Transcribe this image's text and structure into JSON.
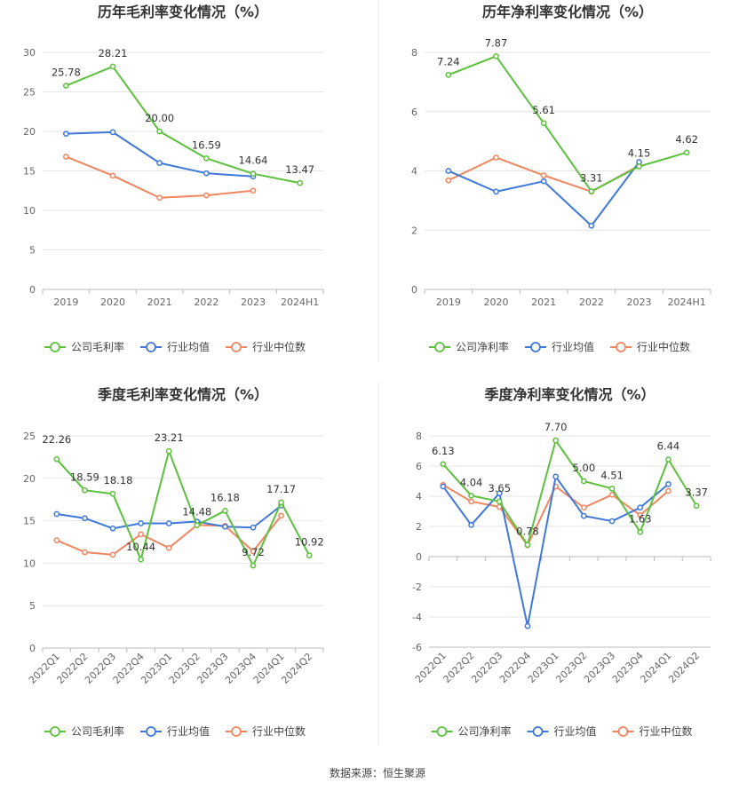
{
  "source_note": "数据来源：恒生聚源",
  "colors": {
    "company": "#5cc13d",
    "industry_avg": "#3f78d8",
    "industry_median": "#f0865f"
  },
  "chart_data": [
    {
      "type": "line",
      "title": "历年毛利率变化情况（%）",
      "categories": [
        "2019",
        "2020",
        "2021",
        "2022",
        "2023",
        "2024H1"
      ],
      "ylim": [
        0,
        30
      ],
      "yticks": [
        0,
        5,
        10,
        15,
        20,
        25,
        30
      ],
      "grid": true,
      "legend_position": "bottom",
      "label_series": 0,
      "series": [
        {
          "name": "公司毛利率",
          "color": "#5cc13d",
          "values": [
            25.78,
            28.21,
            20.0,
            16.59,
            14.64,
            13.47
          ]
        },
        {
          "name": "行业均值",
          "color": "#3f78d8",
          "values": [
            19.7,
            19.9,
            16.0,
            14.7,
            14.3,
            null
          ]
        },
        {
          "name": "行业中位数",
          "color": "#f0865f",
          "values": [
            16.8,
            14.4,
            11.6,
            11.9,
            12.5,
            null
          ]
        }
      ],
      "labels": [
        "25.78",
        "28.21",
        "20.00",
        "16.59",
        "14.64",
        "13.47"
      ]
    },
    {
      "type": "line",
      "title": "历年净利率变化情况（%）",
      "categories": [
        "2019",
        "2020",
        "2021",
        "2022",
        "2023",
        "2024H1"
      ],
      "ylim": [
        0,
        8
      ],
      "yticks": [
        0,
        2,
        4,
        6,
        8
      ],
      "grid": true,
      "legend_position": "bottom",
      "label_series": 0,
      "series": [
        {
          "name": "公司净利率",
          "color": "#5cc13d",
          "values": [
            7.24,
            7.87,
            5.61,
            3.31,
            4.15,
            4.62
          ]
        },
        {
          "name": "行业均值",
          "color": "#3f78d8",
          "values": [
            4.0,
            3.3,
            3.65,
            2.15,
            4.3,
            null
          ]
        },
        {
          "name": "行业中位数",
          "color": "#f0865f",
          "values": [
            3.68,
            4.45,
            3.85,
            3.3,
            4.18,
            null
          ]
        }
      ],
      "labels": [
        "7.24",
        "7.87",
        "5.61",
        "3.31",
        "4.15",
        "4.62"
      ]
    },
    {
      "type": "line",
      "title": "季度毛利率变化情况（%）",
      "categories": [
        "2022Q1",
        "2022Q2",
        "2022Q3",
        "2022Q4",
        "2023Q1",
        "2023Q2",
        "2023Q3",
        "2023Q4",
        "2024Q1",
        "2024Q2"
      ],
      "ylim": [
        0,
        25
      ],
      "yticks": [
        0,
        5,
        10,
        15,
        20,
        25
      ],
      "grid": true,
      "legend_position": "bottom",
      "rotate_x": true,
      "label_series": 0,
      "series": [
        {
          "name": "公司毛利率",
          "color": "#5cc13d",
          "values": [
            22.26,
            18.59,
            18.18,
            10.44,
            23.21,
            14.48,
            16.18,
            9.72,
            17.17,
            10.92
          ]
        },
        {
          "name": "行业均值",
          "color": "#3f78d8",
          "values": [
            15.8,
            15.3,
            14.1,
            14.7,
            14.7,
            14.9,
            14.3,
            14.2,
            16.8,
            null
          ]
        },
        {
          "name": "行业中位数",
          "color": "#f0865f",
          "values": [
            12.7,
            11.3,
            11.0,
            13.4,
            11.8,
            14.5,
            14.4,
            11.4,
            15.6,
            null
          ]
        }
      ],
      "labels": [
        "22.26",
        "18.59",
        "18.18",
        "10.44",
        "23.21",
        "14.48",
        "16.18",
        "9.72",
        "17.17",
        "10.92"
      ]
    },
    {
      "type": "line",
      "title": "季度净利率变化情况（%）",
      "categories": [
        "2022Q1",
        "2022Q2",
        "2022Q3",
        "2022Q4",
        "2023Q1",
        "2023Q2",
        "2023Q3",
        "2023Q4",
        "2024Q1",
        "2024Q2"
      ],
      "ylim": [
        -6,
        8
      ],
      "yticks": [
        -6,
        -4,
        -2,
        0,
        2,
        4,
        6,
        8
      ],
      "grid": true,
      "legend_position": "bottom",
      "rotate_x": true,
      "label_series": 0,
      "series": [
        {
          "name": "公司净利率",
          "color": "#5cc13d",
          "values": [
            6.13,
            4.04,
            3.65,
            0.78,
            7.7,
            5.0,
            4.51,
            1.63,
            6.44,
            3.37
          ]
        },
        {
          "name": "行业均值",
          "color": "#3f78d8",
          "values": [
            4.65,
            2.1,
            4.2,
            -4.6,
            5.3,
            2.7,
            2.35,
            3.25,
            4.8,
            null
          ]
        },
        {
          "name": "行业中位数",
          "color": "#f0865f",
          "values": [
            4.75,
            3.65,
            3.3,
            0.75,
            4.65,
            3.25,
            4.1,
            2.75,
            4.35,
            null
          ]
        }
      ],
      "labels": [
        "6.13",
        "4.04",
        "3.65",
        "0.78",
        "7.70",
        "5.00",
        "4.51",
        "1.63",
        "6.44",
        "3.37"
      ]
    }
  ]
}
